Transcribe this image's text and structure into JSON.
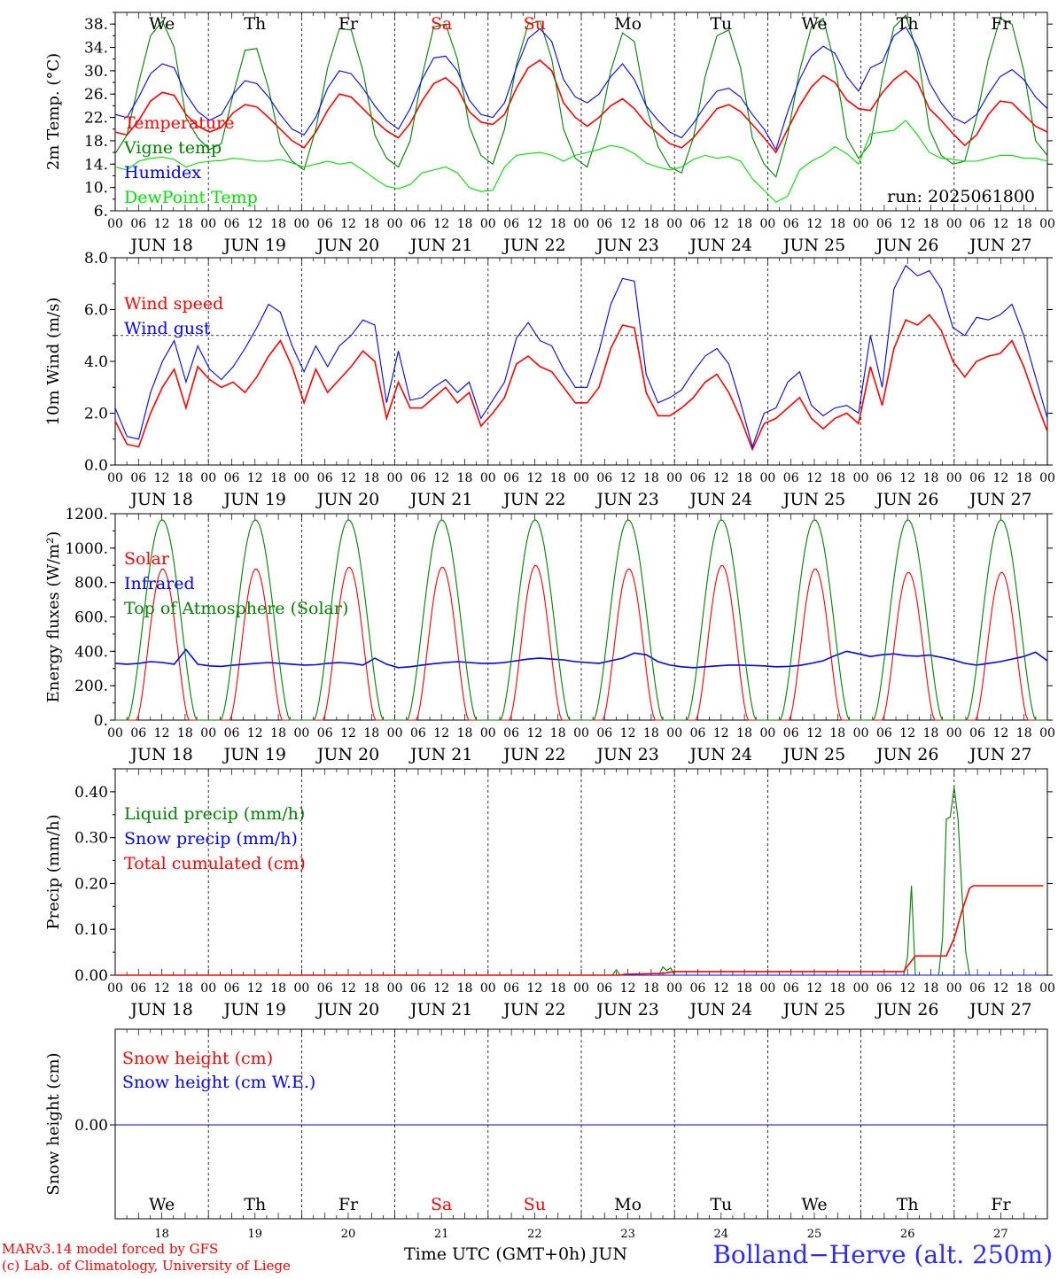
{
  "run_label": "run: 2025061800",
  "footer": {
    "model": "MARv3.14 model forced by GFS",
    "lab": "(c) Lab. of Climatology, University of Liege",
    "time_axis_title": "Time UTC (GMT+0h)",
    "month": "JUN",
    "station": "Bolland−Herve (alt. 250m)"
  },
  "colors": {
    "red": "#ff0000",
    "green": "#008000",
    "blue": "#0000ff",
    "lightgreen": "#00e000",
    "weekend": "#ff0000"
  },
  "days": {
    "weekdays": [
      "We",
      "Th",
      "Fr",
      "Sa",
      "Su",
      "Mo",
      "Tu",
      "We",
      "Th",
      "Fr"
    ],
    "weekend_flags": [
      false,
      false,
      false,
      true,
      true,
      false,
      false,
      false,
      false,
      false
    ],
    "dates": [
      "JUN 18",
      "JUN 19",
      "JUN 20",
      "JUN 21",
      "JUN 22",
      "JUN 23",
      "JUN 24",
      "JUN 25",
      "JUN 26",
      "JUN 27"
    ],
    "day_numbers": [
      "18",
      "19",
      "20",
      "21",
      "22",
      "23",
      "24",
      "25",
      "26",
      "27"
    ],
    "hour_ticks": [
      "00",
      "06",
      "12",
      "18"
    ]
  },
  "chart_data": [
    {
      "id": "temp",
      "type": "line",
      "ylabel": "2m Temp. (°C)",
      "ylim": [
        6,
        40
      ],
      "yticks": [
        "6.",
        "10.",
        "14.",
        "18.",
        "22.",
        "26.",
        "30.",
        "34.",
        "38."
      ],
      "x_start": "2025-06-18 00 UTC",
      "step_hours": 3,
      "series": [
        {
          "name": "Temperature",
          "color": "red",
          "values": [
            19.5,
            19.0,
            21.5,
            24.8,
            26.3,
            25.8,
            22.5,
            20.5,
            19.5,
            20.3,
            22.8,
            24.2,
            23.8,
            22.0,
            20.0,
            18.0,
            16.8,
            19.5,
            23.2,
            26.0,
            25.5,
            23.5,
            21.5,
            19.7,
            18.5,
            21.0,
            24.8,
            27.8,
            28.8,
            27.0,
            23.0,
            21.2,
            20.8,
            22.5,
            27.0,
            30.5,
            31.8,
            30.0,
            24.5,
            22.0,
            20.5,
            22.0,
            24.0,
            25.2,
            23.5,
            21.0,
            19.2,
            17.5,
            16.8,
            18.5,
            21.0,
            23.5,
            24.2,
            23.0,
            20.8,
            18.5,
            16.0,
            20.0,
            24.0,
            27.2,
            29.2,
            28.0,
            25.0,
            23.5,
            23.2,
            26.2,
            28.5,
            30.0,
            28.0,
            23.5,
            21.5,
            19.2,
            17.2,
            19.0,
            22.5,
            24.8,
            24.5,
            22.5,
            20.5,
            19.5
          ]
        },
        {
          "name": "Vigne temp",
          "color": "green",
          "values": [
            15.8,
            19.0,
            28.0,
            36.0,
            38.5,
            34.0,
            22.0,
            18.5,
            16.5,
            17.5,
            26.0,
            33.5,
            33.8,
            27.0,
            17.5,
            14.5,
            13.0,
            20.0,
            30.5,
            37.2,
            37.0,
            30.0,
            19.0,
            15.0,
            13.5,
            18.0,
            29.0,
            37.5,
            38.0,
            32.0,
            20.5,
            15.5,
            14.0,
            20.0,
            31.0,
            38.0,
            38.5,
            32.0,
            20.0,
            15.0,
            13.5,
            20.0,
            30.0,
            36.5,
            35.0,
            24.0,
            17.0,
            13.5,
            12.5,
            18.5,
            29.0,
            36.0,
            37.0,
            30.5,
            18.5,
            14.0,
            11.8,
            19.0,
            30.0,
            37.5,
            39.0,
            31.0,
            18.5,
            15.0,
            17.5,
            28.5,
            37.5,
            39.5,
            33.0,
            20.0,
            15.5,
            14.0,
            14.5,
            22.0,
            32.0,
            39.0,
            38.0,
            30.0,
            18.0,
            15.5
          ]
        },
        {
          "name": "Humidex",
          "color": "blue",
          "values": [
            22.5,
            22.0,
            25.5,
            29.5,
            31.2,
            30.5,
            26.0,
            23.0,
            21.5,
            22.5,
            26.0,
            28.3,
            27.8,
            25.5,
            22.5,
            20.0,
            19.0,
            22.0,
            27.0,
            30.0,
            29.5,
            27.0,
            24.0,
            21.5,
            20.0,
            23.5,
            28.5,
            32.2,
            32.5,
            30.0,
            25.0,
            22.5,
            22.0,
            24.5,
            30.5,
            35.5,
            37.2,
            35.0,
            28.5,
            25.5,
            24.5,
            26.0,
            29.0,
            31.2,
            28.5,
            24.0,
            21.5,
            19.5,
            18.5,
            21.0,
            24.0,
            26.5,
            27.0,
            25.5,
            22.5,
            20.0,
            16.5,
            23.0,
            28.5,
            32.5,
            34.2,
            33.0,
            29.0,
            26.5,
            30.5,
            31.5,
            36.0,
            37.5,
            34.0,
            28.0,
            24.5,
            22.0,
            21.0,
            22.5,
            26.0,
            29.0,
            30.2,
            28.5,
            25.5,
            23.5
          ]
        },
        {
          "name": "DewPoint Temp",
          "color": "lightgreen",
          "values": [
            13.5,
            13.0,
            14.5,
            15.0,
            15.2,
            14.8,
            13.5,
            14.2,
            14.5,
            14.6,
            15.0,
            14.8,
            14.5,
            14.5,
            14.8,
            14.2,
            13.5,
            14.0,
            14.5,
            14.0,
            14.3,
            13.0,
            11.5,
            10.2,
            9.8,
            10.5,
            12.5,
            13.0,
            13.5,
            12.5,
            10.0,
            9.3,
            9.5,
            13.5,
            15.5,
            15.8,
            16.0,
            15.5,
            14.5,
            15.5,
            16.0,
            16.5,
            17.2,
            16.8,
            15.8,
            14.2,
            13.5,
            13.0,
            13.5,
            14.8,
            15.5,
            15.0,
            15.3,
            14.5,
            11.5,
            9.5,
            7.5,
            8.5,
            13.0,
            14.5,
            15.5,
            17.0,
            15.8,
            14.0,
            19.2,
            19.5,
            19.8,
            21.5,
            19.0,
            16.0,
            15.0,
            14.8,
            14.5,
            14.5,
            15.0,
            15.5,
            15.5,
            15.0,
            15.0,
            14.5
          ]
        }
      ]
    },
    {
      "id": "wind",
      "type": "line",
      "ylabel": "10m Wind (m/s)",
      "ylim": [
        0,
        8
      ],
      "yticks": [
        "0.0",
        "2.0",
        "4.0",
        "6.0",
        "8.0"
      ],
      "reference_line": 5,
      "x_start": "2025-06-18 00 UTC",
      "step_hours": 3,
      "series": [
        {
          "name": "Wind speed",
          "color": "red",
          "values": [
            1.7,
            0.8,
            0.7,
            2.0,
            3.0,
            3.7,
            2.2,
            3.8,
            3.3,
            3.0,
            3.2,
            2.8,
            3.4,
            4.2,
            4.8,
            3.8,
            2.4,
            3.7,
            2.8,
            3.3,
            3.8,
            4.4,
            4.0,
            1.8,
            3.2,
            2.2,
            2.2,
            2.6,
            3.0,
            2.4,
            2.8,
            1.5,
            2.0,
            2.6,
            3.9,
            4.2,
            3.8,
            3.6,
            3.0,
            2.4,
            2.4,
            3.0,
            4.5,
            5.4,
            5.3,
            2.8,
            1.9,
            1.9,
            2.2,
            2.6,
            3.2,
            3.5,
            2.8,
            1.8,
            0.6,
            1.6,
            1.8,
            2.2,
            2.6,
            1.8,
            1.4,
            1.8,
            2.0,
            1.6,
            3.8,
            2.3,
            4.5,
            5.6,
            5.4,
            5.8,
            5.2,
            4.0,
            3.4,
            4.0,
            4.2,
            4.3,
            4.8,
            3.8,
            2.5,
            1.3
          ]
        },
        {
          "name": "Wind gust",
          "color": "blue",
          "values": [
            2.2,
            1.1,
            1.0,
            2.8,
            4.0,
            4.8,
            3.2,
            4.6,
            3.7,
            3.3,
            3.8,
            4.5,
            5.3,
            6.2,
            5.9,
            4.6,
            3.6,
            4.6,
            3.8,
            4.6,
            5.0,
            5.6,
            5.4,
            2.4,
            4.4,
            2.5,
            2.6,
            3.0,
            3.3,
            2.8,
            3.2,
            1.8,
            2.5,
            3.2,
            4.9,
            5.5,
            4.8,
            4.6,
            3.7,
            3.0,
            3.0,
            4.4,
            6.2,
            7.2,
            7.1,
            3.5,
            2.4,
            2.6,
            2.9,
            3.6,
            4.2,
            4.5,
            3.9,
            2.4,
            0.7,
            2.0,
            2.2,
            3.2,
            3.6,
            2.3,
            1.9,
            2.2,
            2.3,
            2.0,
            5.0,
            3.0,
            6.8,
            7.7,
            7.3,
            7.5,
            6.8,
            5.3,
            5.0,
            5.7,
            5.6,
            5.8,
            6.2,
            5.0,
            3.4,
            1.8
          ]
        }
      ]
    },
    {
      "id": "energy",
      "type": "line",
      "ylabel": "Energy fluxes (W/m²)",
      "ylim": [
        0,
        1200
      ],
      "yticks": [
        "0.",
        "200.",
        "400.",
        "600.",
        "800.",
        "1000.",
        "1200."
      ],
      "series": [
        {
          "name": "Solar",
          "color": "red",
          "peaks": [
            880,
            880,
            890,
            890,
            900,
            880,
            900,
            880,
            860,
            860
          ]
        },
        {
          "name": "Infrared",
          "color": "blue",
          "values": [
            330,
            325,
            330,
            340,
            335,
            325,
            410,
            325,
            315,
            312,
            320,
            325,
            330,
            335,
            330,
            325,
            320,
            322,
            330,
            335,
            330,
            320,
            360,
            325,
            305,
            310,
            320,
            328,
            335,
            340,
            335,
            330,
            330,
            335,
            345,
            355,
            360,
            355,
            350,
            340,
            335,
            330,
            345,
            360,
            390,
            380,
            340,
            320,
            310,
            305,
            310,
            315,
            320,
            320,
            318,
            315,
            310,
            312,
            318,
            330,
            345,
            375,
            400,
            385,
            370,
            380,
            385,
            375,
            372,
            378,
            365,
            350,
            330,
            320,
            330,
            340,
            355,
            370,
            395,
            345
          ]
        },
        {
          "name": "Top of Atmosphere (Solar)",
          "color": "green",
          "peaks": [
            1165,
            1165,
            1165,
            1165,
            1165,
            1165,
            1165,
            1165,
            1165,
            1165
          ]
        }
      ]
    },
    {
      "id": "precip",
      "type": "line",
      "ylabel": "Precip (mm/h)",
      "ylim": [
        0,
        0.45
      ],
      "yticks": [
        "0.00",
        "0.10",
        "0.20",
        "0.30",
        "0.40"
      ],
      "series": [
        {
          "name": "Liquid precip (mm/h)",
          "color": "green",
          "points": [
            [
              128,
              0
            ],
            [
              129,
              0.012
            ],
            [
              130,
              0
            ],
            [
              140,
              0
            ],
            [
              141,
              0.018
            ],
            [
              142,
              0.01
            ],
            [
              143,
              0.016
            ],
            [
              144,
              0
            ],
            [
              203,
              0
            ],
            [
              204,
              0.04
            ],
            [
              205,
              0.195
            ],
            [
              206,
              0
            ],
            [
              212,
              0
            ],
            [
              213,
              0.08
            ],
            [
              214,
              0.34
            ],
            [
              215,
              0.345
            ],
            [
              216,
              0.41
            ],
            [
              217,
              0.34
            ],
            [
              218,
              0.18
            ],
            [
              219,
              0.05
            ],
            [
              220,
              0
            ],
            [
              239,
              0
            ]
          ]
        },
        {
          "name": "Snow precip (mm/h)",
          "color": "blue",
          "points": [
            [
              0,
              0
            ],
            [
              239,
              0
            ]
          ]
        },
        {
          "name": "Total cumulated (cm)",
          "color": "red",
          "points": [
            [
              0,
              0
            ],
            [
              130,
              0
            ],
            [
              131,
              0.002
            ],
            [
              141,
              0.004
            ],
            [
              144,
              0.008
            ],
            [
              203,
              0.008
            ],
            [
              204,
              0.02
            ],
            [
              206,
              0.042
            ],
            [
              214,
              0.042
            ],
            [
              216,
              0.08
            ],
            [
              218,
              0.14
            ],
            [
              220,
              0.19
            ],
            [
              221,
              0.195
            ],
            [
              239,
              0.195
            ]
          ]
        }
      ]
    },
    {
      "id": "snow",
      "type": "line",
      "ylabel": "Snow height (cm)",
      "yticks": [
        "0.00"
      ],
      "series": [
        {
          "name": "Snow height (cm)",
          "color": "red",
          "values": [
            0,
            0
          ]
        },
        {
          "name": "Snow height (cm W.E.)",
          "color": "blue",
          "values": [
            0,
            0
          ]
        }
      ]
    }
  ]
}
